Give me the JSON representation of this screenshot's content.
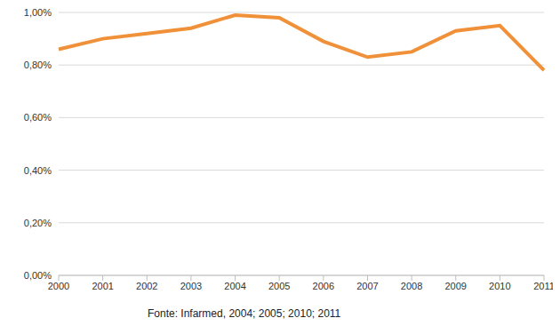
{
  "chart_data": {
    "type": "line",
    "source": "Fonte: Infarmed, 2004; 2005; 2010; 2011",
    "categories": [
      "2000",
      "2001",
      "2002",
      "2003",
      "2004",
      "2005",
      "2006",
      "2007",
      "2008",
      "2009",
      "2010",
      "2011"
    ],
    "values": [
      0.86,
      0.9,
      0.92,
      0.94,
      0.99,
      0.98,
      0.89,
      0.83,
      0.85,
      0.93,
      0.95,
      0.78
    ],
    "color": "#f0913a",
    "ylim": [
      0,
      1
    ],
    "yticks": [
      {
        "value": 0,
        "label": "0,00%"
      },
      {
        "value": 0.2,
        "label": "0,20%"
      },
      {
        "value": 0.4,
        "label": "0,40%"
      },
      {
        "value": 0.6,
        "label": "0,60%"
      },
      {
        "value": 0.8,
        "label": "0,80%"
      },
      {
        "value": 1,
        "label": "1,00%"
      }
    ],
    "grid": true
  }
}
